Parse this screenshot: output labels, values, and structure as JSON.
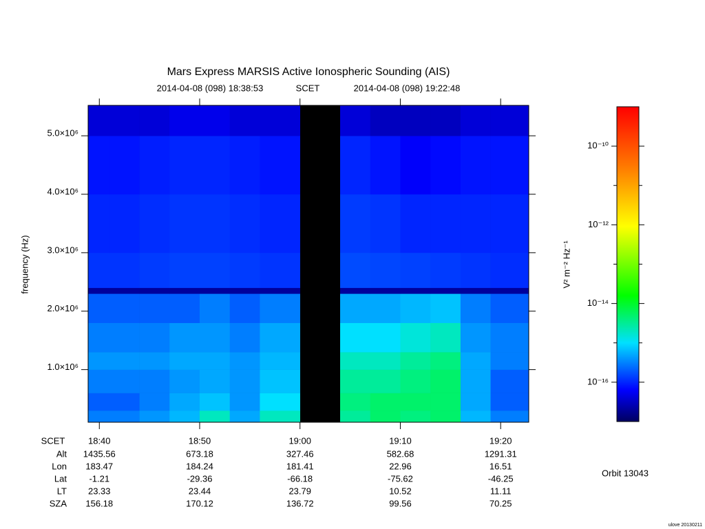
{
  "chart_data": {
    "type": "heatmap",
    "title": "Mars Express MARSIS Active Ionospheric Sounding (AIS)",
    "start_time": "2014-04-08 (098) 18:38:53",
    "time_label": "SCET",
    "end_time": "2014-04-08 (098) 19:22:48",
    "ylabel": "frequency (Hz)",
    "colorbar_label": "V² m⁻² Hz⁻¹",
    "xlim": [
      "18:38:53",
      "19:22:48"
    ],
    "xticks": [
      "18:40",
      "18:50",
      "19:00",
      "19:10",
      "19:20"
    ],
    "ylim": [
      100000,
      5520000
    ],
    "yticks": [
      {
        "value": 1000000,
        "label": "1.0×10⁶"
      },
      {
        "value": 2000000,
        "label": "2.0×10⁶"
      },
      {
        "value": 3000000,
        "label": "3.0×10⁶"
      },
      {
        "value": 4000000,
        "label": "4.0×10⁶"
      },
      {
        "value": 5000000,
        "label": "5.0×10⁶"
      }
    ],
    "clim": [
      1e-17,
      1e-09
    ],
    "clog": true,
    "cticks": [
      {
        "value": 1e-10,
        "label": "10⁻¹⁰"
      },
      {
        "value": 1e-12,
        "label": "10⁻¹²"
      },
      {
        "value": 1e-14,
        "label": "10⁻¹⁴"
      },
      {
        "value": 1e-16,
        "label": "10⁻¹⁶"
      }
    ],
    "cminorticks": [
      1e-11,
      1e-13,
      1e-15
    ],
    "xbins": [
      "18:38:53",
      "18:41",
      "18:44",
      "18:47",
      "18:50",
      "18:53",
      "18:56",
      "19:00",
      "19:04",
      "19:07",
      "19:10",
      "19:13",
      "19:16",
      "19:19",
      "19:22:48"
    ],
    "ybins": [
      100000,
      300000,
      600000,
      1000000,
      1300000,
      1800000,
      2300000,
      2400000,
      3000000,
      4000000,
      5000000,
      5520000
    ],
    "z": [
      [
        3e-16,
        3e-16,
        4e-16,
        6e-16,
        2e-15,
        5e-16,
        2e-15,
        null,
        3e-15,
        5e-15,
        4e-15,
        5e-15,
        6e-16,
        3e-16
      ],
      [
        2e-16,
        2e-16,
        3e-16,
        5e-16,
        7e-16,
        4e-16,
        1e-15,
        null,
        4e-15,
        5e-15,
        5e-15,
        5e-15,
        5e-16,
        2e-16
      ],
      [
        3e-16,
        3e-16,
        3e-16,
        4e-16,
        5e-16,
        4e-16,
        7e-16,
        null,
        3e-15,
        3e-15,
        4e-15,
        5e-15,
        5e-16,
        2e-16
      ],
      [
        4e-16,
        4e-16,
        4e-16,
        5e-16,
        5e-16,
        4e-16,
        6e-16,
        null,
        2e-15,
        2e-15,
        3e-15,
        4e-15,
        5e-16,
        3e-16
      ],
      [
        3e-16,
        3e-16,
        3e-16,
        4e-16,
        4e-16,
        3e-16,
        5e-16,
        null,
        1e-15,
        1e-15,
        1.5e-15,
        2e-15,
        4e-16,
        3e-16
      ],
      [
        2e-16,
        2e-16,
        2e-16,
        2e-16,
        3e-16,
        2e-16,
        3e-16,
        null,
        5e-16,
        5e-16,
        6e-16,
        7e-16,
        3e-16,
        2e-16
      ],
      [
        2e-17,
        2e-17,
        2e-17,
        2e-17,
        2e-17,
        2e-17,
        2e-17,
        null,
        2e-17,
        2e-17,
        2e-17,
        2e-17,
        2e-17,
        2e-17
      ],
      [
        1.2e-16,
        1.2e-16,
        1.3e-16,
        1.4e-16,
        1.4e-16,
        1.3e-16,
        1.2e-16,
        null,
        1.6e-16,
        1.5e-16,
        1.4e-16,
        1.3e-16,
        1.2e-16,
        1.1e-16
      ],
      [
        1e-16,
        1e-16,
        1.1e-16,
        1.2e-16,
        1.2e-16,
        1.1e-16,
        1e-16,
        null,
        1.3e-16,
        1.2e-16,
        1e-16,
        1e-16,
        1e-16,
        1e-16
      ],
      [
        8e-17,
        8e-17,
        9e-17,
        1e-16,
        1e-16,
        9e-17,
        8e-17,
        null,
        1e-16,
        8e-17,
        6e-17,
        7e-17,
        8e-17,
        8e-17
      ],
      [
        4e-17,
        4e-17,
        4e-17,
        5e-17,
        5e-17,
        4e-17,
        4e-17,
        null,
        4e-17,
        3e-17,
        3e-17,
        3e-17,
        4e-17,
        4e-17
      ]
    ],
    "ephemeris": [
      {
        "label": "Alt",
        "values": [
          1435.56,
          673.18,
          327.46,
          582.68,
          1291.31
        ]
      },
      {
        "label": "Lon",
        "values": [
          183.47,
          184.24,
          181.41,
          22.96,
          16.51
        ]
      },
      {
        "label": "Lat",
        "values": [
          -1.21,
          -29.36,
          -66.18,
          -75.62,
          -46.25
        ]
      },
      {
        "label": "LT",
        "values": [
          23.33,
          23.44,
          23.79,
          10.52,
          11.11
        ]
      },
      {
        "label": "SZA",
        "values": [
          156.18,
          170.12,
          136.72,
          99.56,
          70.25
        ]
      }
    ],
    "orbit": "Orbit 13043",
    "credit": "ulove 20130211"
  }
}
